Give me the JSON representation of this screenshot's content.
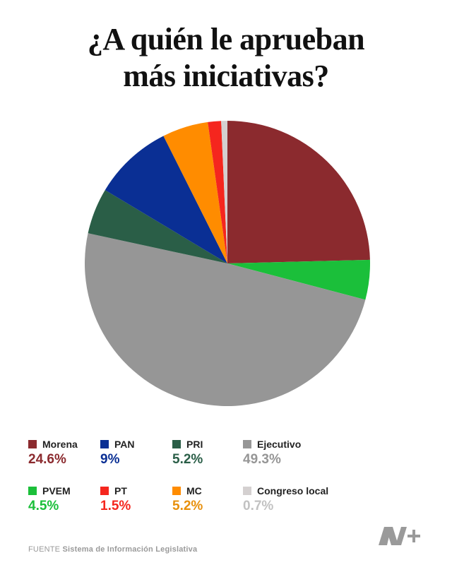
{
  "title_lines": [
    "¿A quién le aprueban",
    "más iniciativas?"
  ],
  "chart_data": {
    "type": "pie",
    "title": "¿A quién le aprueban más iniciativas?",
    "slices": [
      {
        "name": "Morena",
        "value": 24.6,
        "label": "24.6%",
        "color": "#8b2a2e"
      },
      {
        "name": "PVEM",
        "value": 4.5,
        "label": "4.5%",
        "color": "#1bbf3a"
      },
      {
        "name": "Ejecutivo",
        "value": 49.3,
        "label": "49.3%",
        "color": "#969696"
      },
      {
        "name": "PRI",
        "value": 5.2,
        "label": "5.2%",
        "color": "#2a5e47"
      },
      {
        "name": "PAN",
        "value": 9,
        "label": "9%",
        "color": "#0a2f94"
      },
      {
        "name": "MC",
        "value": 5.2,
        "label": "5.2%",
        "color": "#ff8c00"
      },
      {
        "name": "PT",
        "value": 1.5,
        "label": "1.5%",
        "color": "#f5261e"
      },
      {
        "name": "Congreso local",
        "value": 0.7,
        "label": "0.7%",
        "color": "#d4d0d0"
      }
    ],
    "legend_order": [
      "Morena",
      "PAN",
      "PRI",
      "Ejecutivo",
      "PVEM",
      "PT",
      "MC",
      "Congreso local"
    ],
    "value_colors": {
      "Morena": "#8b2a2e",
      "PAN": "#0a2f94",
      "PRI": "#2a5e47",
      "Ejecutivo": "#969696",
      "PVEM": "#1bbf3a",
      "PT": "#f5261e",
      "MC": "#e8900c",
      "Congreso local": "#c2c2c2"
    },
    "legend_placement": "bottom"
  },
  "source": {
    "prefix": "FUENTE",
    "name": "Sistema de Información Legislativa"
  },
  "logo": {
    "icon": "nmas-logo-icon",
    "color": "#9a9a9a"
  }
}
